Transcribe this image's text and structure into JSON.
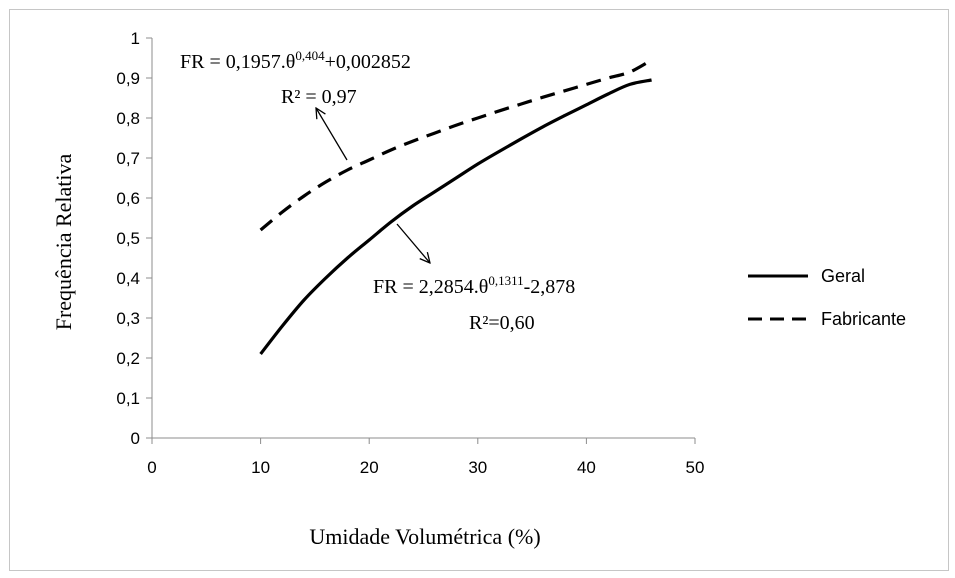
{
  "chart_data": {
    "type": "line",
    "title": "",
    "xlabel": "Umidade Volumétrica (%)",
    "ylabel": "Frequência Relativa",
    "xlim": [
      0,
      50
    ],
    "ylim": [
      0,
      1
    ],
    "x_ticks": [
      "0",
      "10",
      "20",
      "30",
      "40",
      "50"
    ],
    "y_ticks": [
      "0",
      "0,1",
      "0,2",
      "0,3",
      "0,4",
      "0,5",
      "0,6",
      "0,7",
      "0,8",
      "0,9",
      "1"
    ],
    "grid": false,
    "legend_position": "right",
    "series": [
      {
        "name": "Geral",
        "style": "solid",
        "color": "#000000",
        "x": [
          10,
          12,
          14,
          16,
          18,
          20,
          22,
          24,
          26,
          28,
          30,
          32,
          34,
          36,
          38,
          40,
          42,
          44,
          46
        ],
        "y": [
          0.21,
          0.28,
          0.345,
          0.4,
          0.45,
          0.495,
          0.54,
          0.58,
          0.615,
          0.65,
          0.685,
          0.717,
          0.748,
          0.778,
          0.806,
          0.833,
          0.86,
          0.884,
          0.895
        ]
      },
      {
        "name": "Fabricante",
        "style": "dashed",
        "color": "#000000",
        "x": [
          10,
          12,
          14,
          16,
          18,
          20,
          22,
          24,
          26,
          28,
          30,
          32,
          34,
          36,
          38,
          40,
          42,
          44,
          46
        ],
        "y": [
          0.52,
          0.565,
          0.605,
          0.64,
          0.67,
          0.695,
          0.72,
          0.742,
          0.762,
          0.782,
          0.8,
          0.818,
          0.835,
          0.852,
          0.868,
          0.884,
          0.9,
          0.915,
          0.945
        ]
      }
    ],
    "annotations": [
      {
        "id": "fabricante",
        "eq_base1": "FR = 0,1957.θ",
        "eq_exp": "0,404",
        "eq_base2": "+0,002852",
        "r2": "R² = 0,97"
      },
      {
        "id": "geral",
        "eq_base1": "FR = 2,2854.θ",
        "eq_exp": "0,1311",
        "eq_base2": "-2,878",
        "r2": "R²=0,60"
      }
    ]
  }
}
